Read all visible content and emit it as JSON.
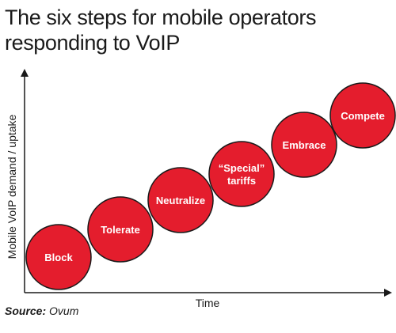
{
  "title": "The six steps for mobile operators responding to VoIP",
  "y_axis_label": "Mobile VoIP demand / uptake",
  "x_axis_label": "Time",
  "steps": [
    {
      "lines": [
        "Block"
      ]
    },
    {
      "lines": [
        "Tolerate"
      ]
    },
    {
      "lines": [
        "Neutralize"
      ]
    },
    {
      "lines": [
        "“Special”",
        "tariffs"
      ]
    },
    {
      "lines": [
        "Embrace"
      ]
    },
    {
      "lines": [
        "Compete"
      ]
    }
  ],
  "source": {
    "label": "Source:",
    "value": "Ovum"
  },
  "colors": {
    "circle_fill": "#e41d2d",
    "circle_stroke": "#1a1a1a",
    "circle_text": "#ffffff",
    "axis": "#1a1a1a"
  }
}
